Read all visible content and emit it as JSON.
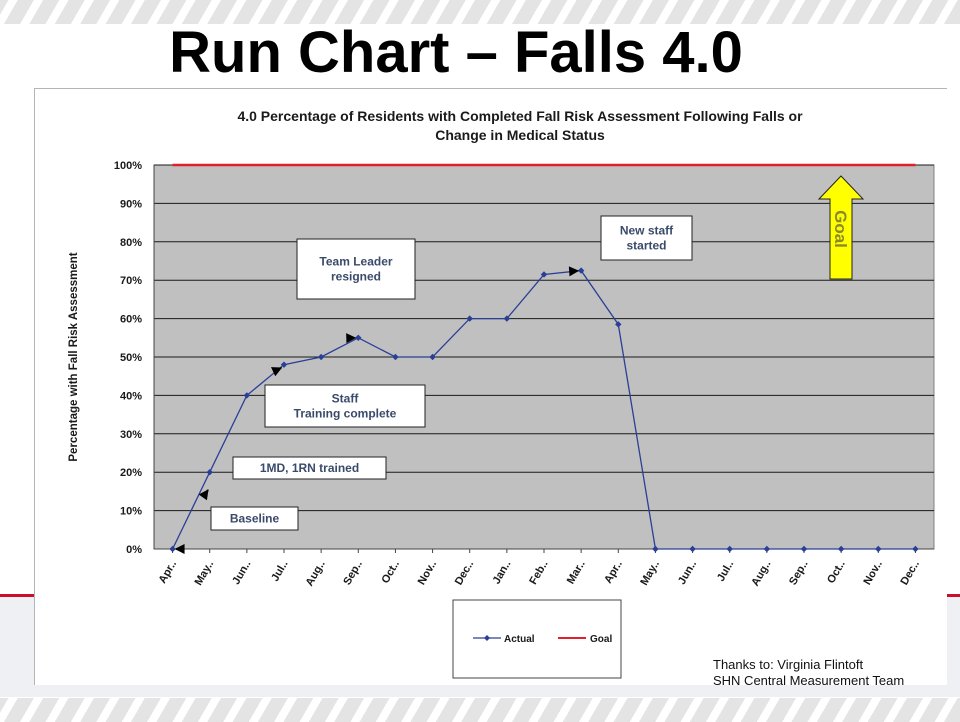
{
  "slide": {
    "title": "Run Chart – Falls 4.0",
    "credit_line1": "Thanks to: Virginia Flintoft",
    "credit_line2": "SHN Central Measurement Team"
  },
  "chart_data": {
    "type": "line",
    "title_line1": "4.0 Percentage of Residents with Completed Fall Risk Assessment  Following Falls or",
    "title_line2": "Change in Medical Status",
    "xlabel": "",
    "ylabel": "Percentage with Fall Risk Assessment",
    "categories": [
      "Apr..",
      "May..",
      "Jun..",
      "Jul..",
      "Aug..",
      "Sep..",
      "Oct..",
      "Nov..",
      "Dec..",
      "Jan..",
      "Feb..",
      "Mar..",
      "Apr..",
      "May..",
      "Jun..",
      "Jul..",
      "Aug..",
      "Sep..",
      "Oct..",
      "Nov..",
      "Dec.."
    ],
    "yticks": [
      "0%",
      "10%",
      "20%",
      "30%",
      "40%",
      "50%",
      "60%",
      "70%",
      "80%",
      "90%",
      "100%"
    ],
    "ylim": [
      0,
      100
    ],
    "grid": true,
    "series": [
      {
        "name": "Actual",
        "color": "#2a3f96",
        "values": [
          0,
          20,
          40,
          48,
          50,
          55,
          50,
          50,
          60,
          60,
          71.5,
          72.5,
          58.5,
          0,
          0,
          0,
          0,
          0,
          0,
          0,
          0
        ]
      },
      {
        "name": "Goal",
        "color": "#e0202a",
        "values": [
          100,
          100,
          100,
          100,
          100,
          100,
          100,
          100,
          100,
          100,
          100,
          100,
          100,
          100,
          100,
          100,
          100,
          100,
          100,
          100,
          100
        ]
      }
    ],
    "legend": {
      "position": "bottom-center",
      "items": [
        "Actual",
        "Goal"
      ]
    },
    "annotations": [
      {
        "lines": [
          "Baseline"
        ],
        "category_index": 0,
        "value": 0
      },
      {
        "lines": [
          "1MD, 1RN trained"
        ],
        "category_index": 1,
        "value": 16
      },
      {
        "lines": [
          "Staff",
          "Training complete"
        ],
        "category_index": 3,
        "value": 47.5
      },
      {
        "lines": [
          "Team Leader",
          "resigned"
        ],
        "category_index": 5,
        "value": 55
      },
      {
        "lines": [
          "New staff",
          "started"
        ],
        "category_index": 11,
        "value": 72.5
      }
    ],
    "goal_arrow": {
      "label": "Goal",
      "color": "#ffff00"
    }
  }
}
